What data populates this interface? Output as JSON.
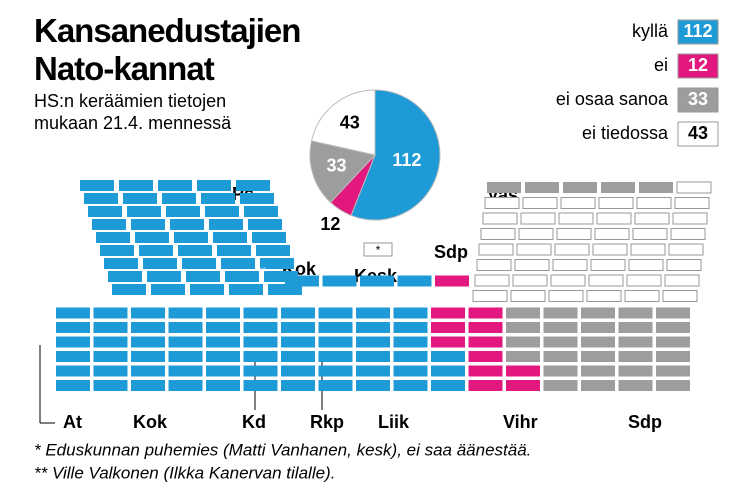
{
  "chart_data": {
    "type": "pie",
    "title": "Kansanedustajien Nato-kannat",
    "subtitle": "HS:n keräämien tietojen mukaan 21.4. mennessä",
    "categories": [
      "kyllä",
      "ei",
      "ei osaa sanoa",
      "ei tiedossa"
    ],
    "values": [
      112,
      12,
      33,
      43
    ],
    "colors": [
      "#1e9bd7",
      "#e2187f",
      "#9d9d9d",
      "#ffffff"
    ],
    "parties": [
      "Ps",
      "Kok",
      "Kesk",
      "Vas",
      "Sdp",
      "At",
      "Kok",
      "Kd",
      "Rkp",
      "Liik",
      "Vihr",
      "Sdp"
    ],
    "markers": [
      "**",
      "*"
    ],
    "notes": [
      "* Eduskunnan puhemies (Matti Vanhanen, kesk), ei saa äänestää.",
      "** Ville Valkonen (Ilkka Kanervan tilalle)."
    ]
  }
}
